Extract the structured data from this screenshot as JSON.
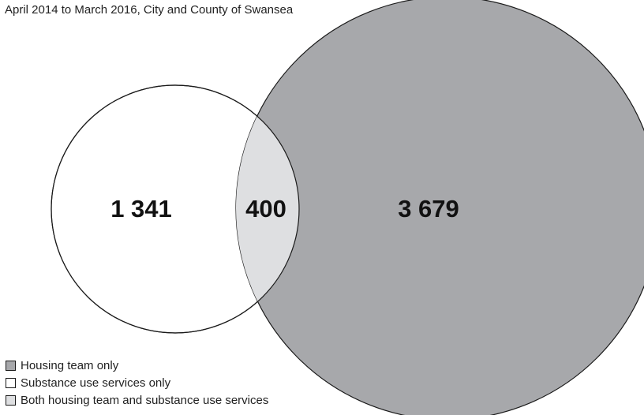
{
  "subtitle": "April 2014 to March 2016, City and County of Swansea",
  "regions": {
    "substance_only": {
      "value": "1 341",
      "color": "#ffffff"
    },
    "overlap": {
      "value": "400",
      "color": "#dedfe1"
    },
    "housing_only": {
      "value": "3 679",
      "color": "#a7a8ab"
    }
  },
  "legend": [
    {
      "label": "Housing team only",
      "color": "#a7a8ab"
    },
    {
      "label": "Substance use services only",
      "color": "#ffffff"
    },
    {
      "label": "Both housing team and substance use services",
      "color": "#dedfe1"
    }
  ]
}
